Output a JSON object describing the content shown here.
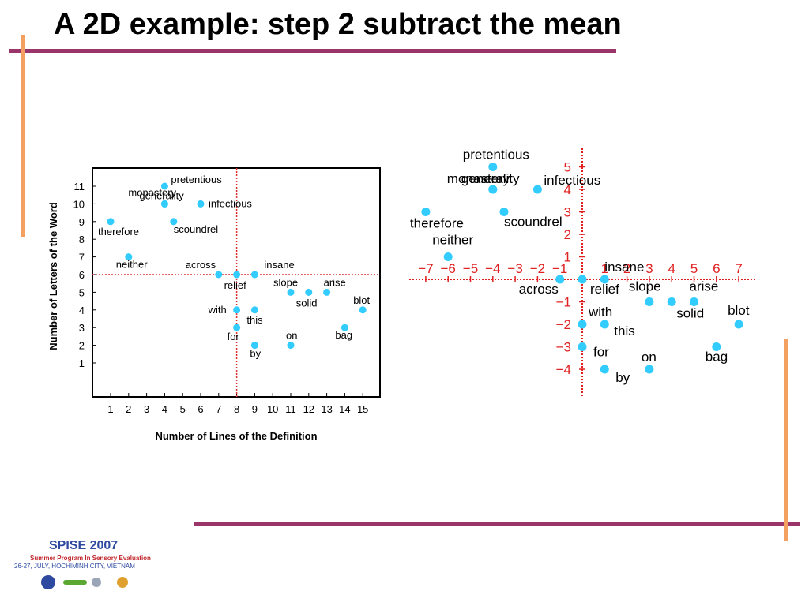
{
  "slide": {
    "title": "A 2D example: step 2 subtract the mean",
    "accent_colors": {
      "purple": "#9b3468",
      "orange": "#f4a060",
      "point": "#33ccff"
    }
  },
  "footer": {
    "title": "SPISE 2007",
    "subtitle": "Summer Program In Sensory Evaluation",
    "date": "26-27, JULY, HOCHIMINH CITY, VIETNAM"
  },
  "chart_data": [
    {
      "type": "scatter",
      "xlabel": "Number of Lines of the Definition",
      "ylabel": "Number of Letters of the Word",
      "xlim": [
        0,
        16
      ],
      "ylim": [
        -1,
        12
      ],
      "xticks": [
        1,
        2,
        3,
        4,
        5,
        6,
        7,
        8,
        9,
        10,
        11,
        12,
        13,
        14,
        15
      ],
      "yticks": [
        1,
        2,
        3,
        4,
        5,
        6,
        7,
        8,
        9,
        10,
        11
      ],
      "mean_lines": {
        "x": 8,
        "y": 6
      },
      "grid": false,
      "points": [
        {
          "label": "bag",
          "x": 14,
          "y": 3
        },
        {
          "label": "across",
          "x": 7,
          "y": 6
        },
        {
          "label": "on",
          "x": 11,
          "y": 2
        },
        {
          "label": "insane",
          "x": 9,
          "y": 6
        },
        {
          "label": "by",
          "x": 9,
          "y": 2
        },
        {
          "label": "monastery",
          "x": 4,
          "y": 10
        },
        {
          "label": "relief",
          "x": 8,
          "y": 6
        },
        {
          "label": "slope",
          "x": 11,
          "y": 5
        },
        {
          "label": "scoundrel",
          "x": 4.5,
          "y": 9
        },
        {
          "label": "with",
          "x": 8,
          "y": 4
        },
        {
          "label": "neither",
          "x": 2,
          "y": 7
        },
        {
          "label": "pretentious",
          "x": 4,
          "y": 11
        },
        {
          "label": "solid",
          "x": 12,
          "y": 5
        },
        {
          "label": "this",
          "x": 9,
          "y": 4
        },
        {
          "label": "for",
          "x": 8,
          "y": 3
        },
        {
          "label": "therefore",
          "x": 1,
          "y": 9
        },
        {
          "label": "generality",
          "x": 4,
          "y": 10
        },
        {
          "label": "arise",
          "x": 13,
          "y": 5
        },
        {
          "label": "blot",
          "x": 15,
          "y": 4
        },
        {
          "label": "infectious",
          "x": 6,
          "y": 10
        }
      ]
    },
    {
      "type": "scatter",
      "xlim": [
        -8,
        8
      ],
      "ylim": [
        -5,
        6
      ],
      "xticks": [
        -7,
        -6,
        -5,
        -4,
        -3,
        -2,
        -1,
        1,
        2,
        3,
        4,
        5,
        6,
        7
      ],
      "xtick_labels": [
        "−7",
        "−6",
        "−5",
        "−4",
        "−3",
        "−2",
        "−1",
        "1",
        "2",
        "3",
        "4",
        "5",
        "6",
        "7"
      ],
      "yticks": [
        -4,
        -3,
        -2,
        -1,
        1,
        2,
        3,
        4,
        5
      ],
      "ytick_labels": [
        "−4",
        "−3",
        "−2",
        "−1",
        "1",
        "2",
        "3",
        "4",
        "5"
      ],
      "grid": false,
      "points": [
        {
          "label": "bag",
          "x": 6,
          "y": -3
        },
        {
          "label": "across",
          "x": -1,
          "y": 0
        },
        {
          "label": "on",
          "x": 3,
          "y": -4
        },
        {
          "label": "insane",
          "x": 1,
          "y": 0
        },
        {
          "label": "by",
          "x": 1,
          "y": -4
        },
        {
          "label": "monastery",
          "x": -4,
          "y": 4
        },
        {
          "label": "relief",
          "x": 0,
          "y": 0
        },
        {
          "label": "slope",
          "x": 3,
          "y": -1
        },
        {
          "label": "scoundrel",
          "x": -3.5,
          "y": 3
        },
        {
          "label": "with",
          "x": 0,
          "y": -2
        },
        {
          "label": "neither",
          "x": -6,
          "y": 1
        },
        {
          "label": "pretentious",
          "x": -4,
          "y": 5
        },
        {
          "label": "solid",
          "x": 4,
          "y": -1
        },
        {
          "label": "this",
          "x": 1,
          "y": -2
        },
        {
          "label": "for",
          "x": 0,
          "y": -3
        },
        {
          "label": "therefore",
          "x": -7,
          "y": 3
        },
        {
          "label": "generality",
          "x": -4,
          "y": 4
        },
        {
          "label": "arise",
          "x": 5,
          "y": -1
        },
        {
          "label": "blot",
          "x": 7,
          "y": -2
        },
        {
          "label": "infectious",
          "x": -2,
          "y": 4
        }
      ]
    }
  ]
}
